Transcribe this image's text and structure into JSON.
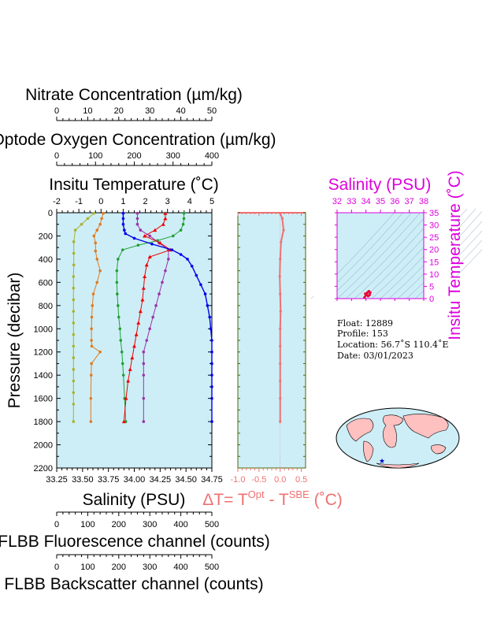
{
  "top_axes": {
    "nitrate": {
      "label": "Nitrate Concentration (µm/kg)",
      "range": [
        0,
        50
      ],
      "ticks": [
        "0",
        "10",
        "20",
        "30",
        "40",
        "50"
      ]
    },
    "oxygen": {
      "label": "Optode Oxygen Concentration (µm/kg)",
      "range": [
        0,
        400
      ],
      "ticks": [
        "0",
        "100",
        "200",
        "300",
        "400"
      ]
    },
    "temperature": {
      "label": "Insitu Temperature (˚C)",
      "range": [
        -2,
        5
      ],
      "ticks": [
        "-2",
        "-1",
        "0",
        "1",
        "2",
        "3",
        "4",
        "5"
      ]
    }
  },
  "bottom_axes": {
    "salinity": {
      "label": "Salinity (PSU)",
      "range": [
        33.25,
        34.75
      ],
      "ticks": [
        "33.25",
        "33.50",
        "33.75",
        "34.00",
        "34.25",
        "34.50",
        "34.75"
      ]
    },
    "fluorescence": {
      "label": "FLBB Fluorescence channel (counts)",
      "range": [
        0,
        500
      ],
      "ticks": [
        "0",
        "100",
        "200",
        "300",
        "400",
        "500"
      ]
    },
    "backscatter": {
      "label": "FLBB Backscatter channel (counts)",
      "range": [
        0,
        500
      ],
      "ticks": [
        "0",
        "100",
        "200",
        "300",
        "400",
        "500"
      ]
    }
  },
  "y_axis": {
    "label": "Pressure (decibar)",
    "range": [
      0,
      2200
    ],
    "ticks": [
      "0",
      "200",
      "400",
      "600",
      "800",
      "1000",
      "1200",
      "1400",
      "1600",
      "1800",
      "2000",
      "2200"
    ]
  },
  "delta_panel": {
    "label_prefix": "ΔT= T",
    "label_sup1": "Opt",
    "label_mid": " - T",
    "label_sup2": "SBE",
    "label_suffix": " (˚C)",
    "ticks": [
      "-1.0",
      "-0.5",
      "0.0",
      "0.5"
    ],
    "range": [
      -1.0,
      0.6
    ]
  },
  "ts_panel": {
    "title": "Salinity (PSU)",
    "right_label": "Insitu Temperature (˚C)",
    "sal_ticks": [
      "32",
      "33",
      "34",
      "35",
      "36",
      "37",
      "38"
    ],
    "temp_ticks": [
      "0",
      "5",
      "10",
      "15",
      "20",
      "25",
      "30",
      "35"
    ]
  },
  "info": {
    "float_line": "Float:  12889",
    "profile_line": "Profile:  153",
    "location_line": "Location:  56.7˚S  110.4˚E",
    "date_line": "Date:  03/01/2023"
  },
  "colors": {
    "plot_bg": "#cdeef7",
    "temperature": "#0000ee",
    "salinity": "#ee0000",
    "oxygen": "#22a033",
    "nitrate": "#9a33aa",
    "fluorescence": "#e07a1f",
    "backscatter": "#aab22c",
    "delta": "#f07070",
    "ts_frame": "#dd00dd"
  },
  "chart_data": [
    {
      "type": "line",
      "title": "",
      "ylabel": "Pressure (decibar)",
      "ylim": [
        2200,
        0
      ],
      "series": [
        {
          "name": "Insitu Temperature (˚C)",
          "axis": "temperature",
          "x": [
            1.0,
            1.0,
            1.0,
            1.05,
            1.1,
            1.5,
            2.3,
            3.2,
            3.6,
            3.9,
            4.1,
            4.3,
            4.5,
            4.7,
            4.8,
            4.9,
            4.95,
            5.0,
            5.0,
            5.0,
            5.0,
            5.0,
            5.0,
            5.0
          ],
          "y": [
            5,
            50,
            100,
            150,
            180,
            220,
            270,
            320,
            360,
            400,
            460,
            540,
            620,
            700,
            800,
            900,
            1000,
            1100,
            1200,
            1300,
            1400,
            1500,
            1600,
            1800
          ]
        },
        {
          "name": "Salinity (PSU)",
          "axis": "salinity",
          "x": [
            34.3,
            34.3,
            34.28,
            34.2,
            34.1,
            34.25,
            34.35,
            34.15,
            34.12,
            34.1,
            34.09,
            34.08,
            34.06,
            34.04,
            34.02,
            34.0,
            33.98,
            33.96,
            33.94,
            33.92,
            33.9
          ],
          "y": [
            5,
            50,
            100,
            150,
            200,
            260,
            320,
            380,
            450,
            550,
            650,
            750,
            850,
            950,
            1050,
            1150,
            1250,
            1350,
            1450,
            1600,
            1800
          ]
        },
        {
          "name": "Optode Oxygen Concentration (µm/kg)",
          "axis": "oxygen",
          "x": [
            328,
            328,
            326,
            320,
            300,
            260,
            210,
            170,
            158,
            155,
            155,
            156,
            158,
            160,
            163,
            165,
            168,
            170,
            172,
            175,
            178
          ],
          "y": [
            5,
            50,
            100,
            150,
            200,
            240,
            280,
            320,
            400,
            500,
            600,
            700,
            800,
            900,
            1000,
            1100,
            1200,
            1300,
            1400,
            1600,
            1800
          ]
        },
        {
          "name": "Nitrate Concentration (µm/kg)",
          "axis": "nitrate",
          "x": [
            26,
            26,
            26,
            27,
            30,
            33,
            36,
            36,
            35,
            34,
            33,
            32,
            31,
            30,
            29,
            28,
            28,
            28,
            28,
            28
          ],
          "y": [
            5,
            50,
            100,
            150,
            200,
            260,
            320,
            400,
            500,
            600,
            700,
            800,
            900,
            1000,
            1100,
            1200,
            1300,
            1400,
            1600,
            1800
          ]
        },
        {
          "name": "FLBB Fluorescence channel (counts)",
          "axis": "fluorescence",
          "x": [
            150,
            145,
            140,
            130,
            120,
            125,
            125,
            130,
            140,
            130,
            118,
            115,
            113,
            112,
            112,
            113,
            140,
            112,
            111,
            110,
            110
          ],
          "y": [
            5,
            50,
            100,
            150,
            200,
            260,
            330,
            400,
            500,
            600,
            700,
            800,
            900,
            1000,
            1100,
            1150,
            1200,
            1300,
            1400,
            1600,
            1800
          ]
        },
        {
          "name": "FLBB Backscatter channel (counts)",
          "axis": "backscatter",
          "x": [
            120,
            100,
            80,
            60,
            55,
            55,
            55,
            54,
            54,
            54,
            54,
            54,
            54,
            54,
            54,
            54,
            54,
            54,
            54,
            54
          ],
          "y": [
            5,
            50,
            100,
            150,
            250,
            350,
            450,
            550,
            650,
            750,
            850,
            950,
            1050,
            1150,
            1250,
            1350,
            1450,
            1550,
            1650,
            1800
          ]
        }
      ]
    },
    {
      "type": "line",
      "title": "",
      "xlim": [
        -1.0,
        0.6
      ],
      "ylim": [
        2200,
        0
      ],
      "series": [
        {
          "name": "ΔT",
          "x": [
            0.0,
            0.05,
            0.08,
            0.02,
            0.0,
            -0.01,
            0.0,
            0.01,
            0.0,
            0.0,
            0.0,
            0.0,
            0.0,
            0.0
          ],
          "y": [
            5,
            50,
            150,
            250,
            400,
            550,
            700,
            850,
            1000,
            1150,
            1300,
            1450,
            1600,
            1800
          ]
        }
      ]
    },
    {
      "type": "scatter",
      "title": "Salinity (PSU)",
      "xlim": [
        32,
        38
      ],
      "ylim": [
        0,
        35
      ],
      "series": [
        {
          "name": "T-S",
          "x": [
            33.9,
            34.0,
            34.1,
            34.2,
            34.3,
            34.25,
            34.15,
            34.05,
            33.95
          ],
          "y": [
            0.5,
            1.5,
            2.5,
            3.0,
            2.5,
            1.5,
            1.0,
            1.5,
            2.0
          ]
        }
      ]
    }
  ]
}
